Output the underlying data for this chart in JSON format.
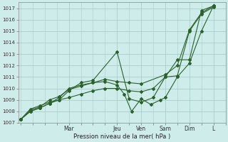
{
  "title": "",
  "xlabel": "Pression niveau de la mer( hPa )",
  "ylabel": "",
  "background_color": "#ceecea",
  "grid_color": "#aacccc",
  "line_color": "#2a622a",
  "ylim": [
    1007.0,
    1017.5
  ],
  "xlim": [
    -0.1,
    8.5
  ],
  "yticks": [
    1007,
    1008,
    1009,
    1010,
    1011,
    1012,
    1013,
    1014,
    1015,
    1016,
    1017
  ],
  "day_labels": [
    "Mar",
    "Jeu",
    "Ven",
    "Sam",
    "Dim",
    "L"
  ],
  "day_positions": [
    2.0,
    4.0,
    5.0,
    6.0,
    7.0,
    8.0
  ],
  "series": [
    {
      "x": [
        0.0,
        0.4,
        0.8,
        1.2,
        1.6,
        2.0,
        2.5,
        3.0,
        4.0,
        4.5,
        5.0,
        5.5,
        6.0,
        6.5,
        7.0,
        7.5,
        8.0
      ],
      "y": [
        1007.3,
        1008.0,
        1008.3,
        1008.7,
        1009.0,
        1009.8,
        1010.5,
        1010.7,
        1013.2,
        1009.1,
        1008.8,
        1009.2,
        1011.0,
        1012.5,
        1012.5,
        1016.8,
        1017.2
      ]
    },
    {
      "x": [
        0.0,
        0.4,
        0.8,
        1.2,
        1.6,
        2.0,
        2.5,
        3.0,
        3.5,
        4.0,
        4.5,
        5.0,
        5.5,
        6.0,
        6.5,
        7.0,
        7.5,
        8.0
      ],
      "y": [
        1007.3,
        1008.2,
        1008.5,
        1008.8,
        1009.0,
        1009.2,
        1009.5,
        1009.8,
        1010.0,
        1010.0,
        1009.8,
        1009.7,
        1010.0,
        1011.0,
        1011.1,
        1015.0,
        1016.5,
        1017.1
      ]
    },
    {
      "x": [
        0.0,
        0.4,
        0.8,
        1.2,
        1.6,
        2.0,
        2.5,
        3.0,
        3.5,
        4.0,
        4.5,
        5.0,
        6.0,
        6.5,
        7.0,
        7.5,
        8.0
      ],
      "y": [
        1007.3,
        1008.0,
        1008.3,
        1008.7,
        1009.2,
        1010.0,
        1010.3,
        1010.5,
        1010.8,
        1010.6,
        1010.5,
        1010.4,
        1011.2,
        1012.0,
        1015.1,
        1016.6,
        1017.2
      ]
    },
    {
      "x": [
        0.0,
        0.4,
        0.8,
        1.2,
        1.6,
        2.0,
        2.5,
        3.0,
        3.5,
        4.0,
        4.3,
        4.6,
        5.0,
        5.4,
        5.8,
        6.0,
        6.5,
        7.0,
        7.5,
        8.0
      ],
      "y": [
        1007.3,
        1008.1,
        1008.4,
        1009.0,
        1009.3,
        1009.9,
        1010.2,
        1010.5,
        1010.6,
        1010.3,
        1009.5,
        1008.0,
        1009.1,
        1008.6,
        1009.0,
        1009.2,
        1011.0,
        1012.2,
        1015.0,
        1017.2
      ]
    }
  ]
}
